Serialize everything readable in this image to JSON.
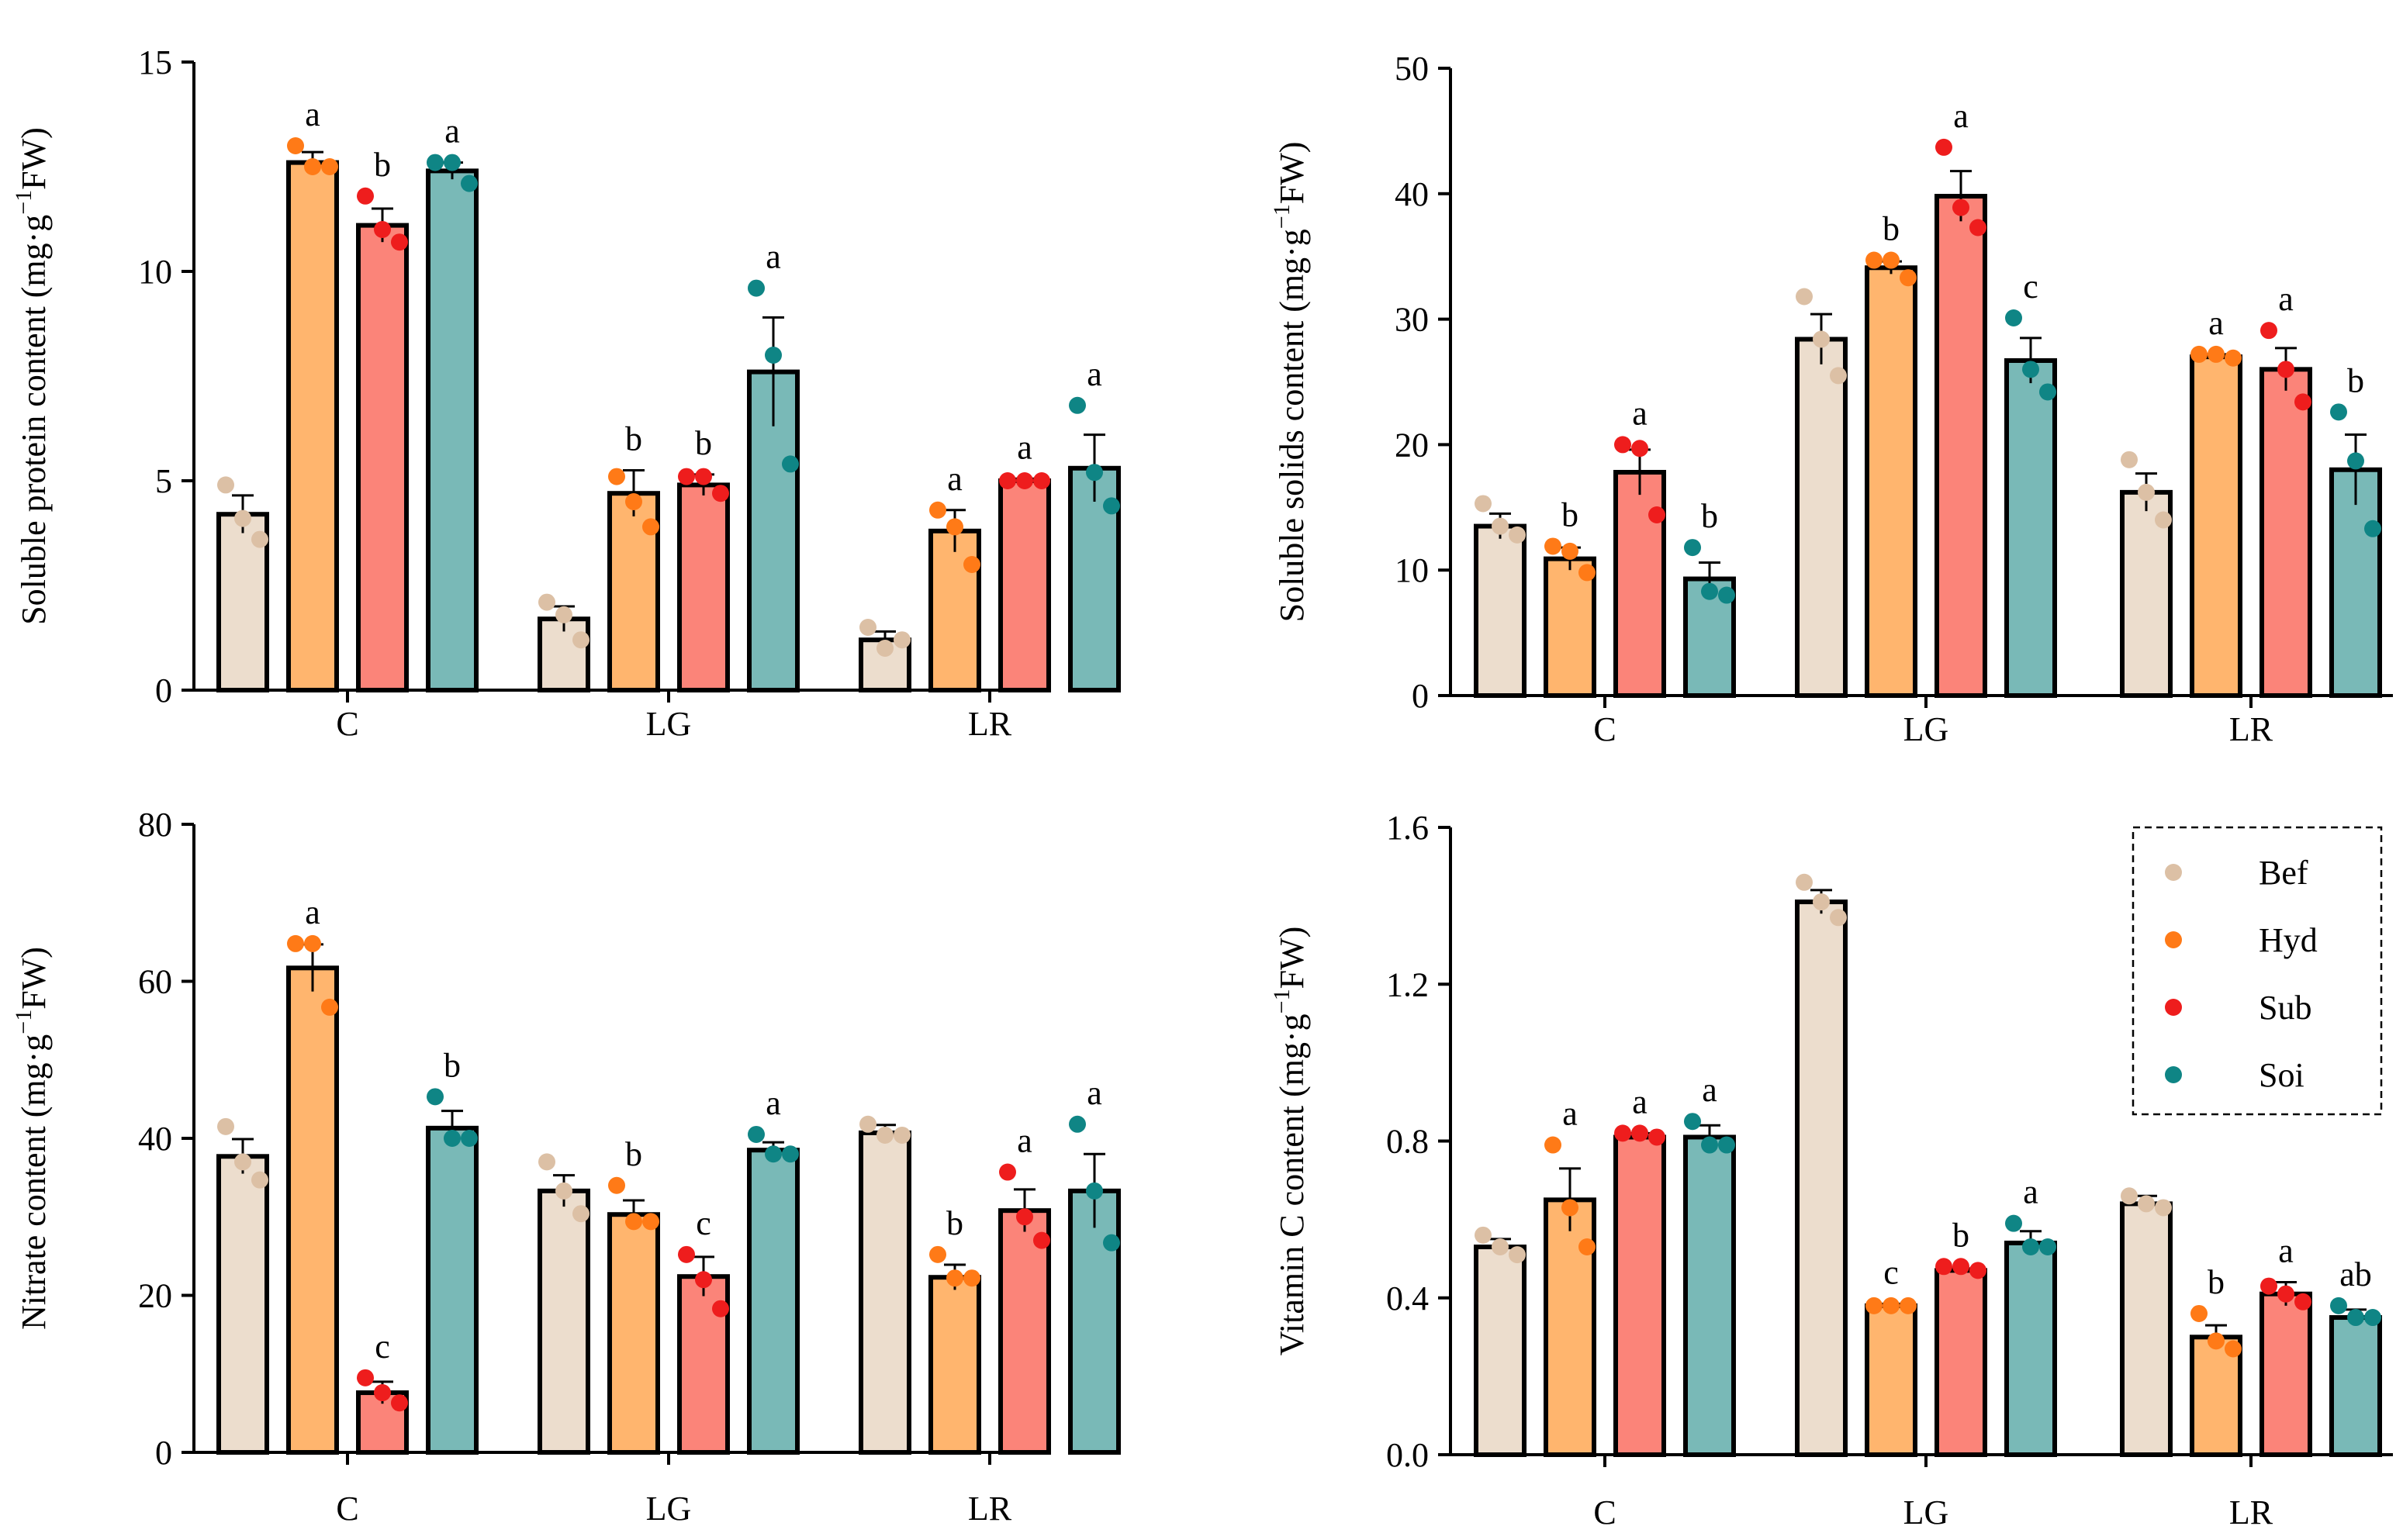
{
  "legend": {
    "entries": [
      {
        "key": "Bef",
        "label": "Bef",
        "dot": "#dcc0a5",
        "fill": "#ecddcd"
      },
      {
        "key": "Hyd",
        "label": "Hyd",
        "dot": "#ff7a17",
        "fill": "#ffb56e"
      },
      {
        "key": "Sub",
        "label": "Sub",
        "dot": "#ee1d1d",
        "fill": "#fb8479"
      },
      {
        "key": "Soi",
        "label": "Soi",
        "dot": "#0f8585",
        "fill": "#79b9b7"
      }
    ]
  },
  "chart_data": [
    {
      "type": "bar",
      "panel": "top-left",
      "ylabel": "Soluble protein content (mg·g",
      "ylabel_sup": "−1",
      "ylabel_end": "FW)",
      "ylim": [
        0,
        15
      ],
      "yticks": [
        "0",
        "5",
        "10",
        "15"
      ],
      "categories": [
        "C",
        "LG",
        "LR"
      ],
      "series": [
        {
          "name": "Bef",
          "values": [
            4.2,
            1.7,
            1.2
          ],
          "errors": [
            0.45,
            0.3,
            0.2
          ],
          "points": [
            [
              4.9,
              4.1,
              3.6
            ],
            [
              2.1,
              1.8,
              1.2
            ],
            [
              1.5,
              1.0,
              1.2
            ]
          ],
          "letters": [
            "",
            "",
            ""
          ]
        },
        {
          "name": "Hyd",
          "values": [
            12.6,
            4.7,
            3.8
          ],
          "errors": [
            0.25,
            0.55,
            0.5
          ],
          "points": [
            [
              13.0,
              12.5,
              12.5
            ],
            [
              5.1,
              4.5,
              3.9
            ],
            [
              4.3,
              3.9,
              3.0
            ]
          ],
          "letters": [
            "a",
            "b",
            "a"
          ]
        },
        {
          "name": "Sub",
          "values": [
            11.1,
            4.9,
            5.0
          ],
          "errors": [
            0.4,
            0.25,
            0.05
          ],
          "points": [
            [
              11.8,
              11.0,
              10.7
            ],
            [
              5.1,
              5.1,
              4.7
            ],
            [
              5.0,
              5.0,
              5.0
            ]
          ],
          "letters": [
            "b",
            "b",
            "a"
          ]
        },
        {
          "name": "Soi",
          "values": [
            12.4,
            7.6,
            5.3
          ],
          "errors": [
            0.2,
            1.3,
            0.8
          ],
          "points": [
            [
              12.6,
              12.6,
              12.1
            ],
            [
              9.6,
              8.0,
              5.4
            ],
            [
              6.8,
              5.2,
              4.4
            ]
          ],
          "letters": [
            "a",
            "a",
            "a"
          ]
        }
      ]
    },
    {
      "type": "bar",
      "panel": "top-right",
      "ylabel": "Soluble solids content  (mg·g",
      "ylabel_sup": "−1",
      "ylabel_end": "FW)",
      "ylim": [
        0,
        50
      ],
      "yticks": [
        "0",
        "10",
        "20",
        "30",
        "40",
        "50"
      ],
      "categories": [
        "C",
        "LG",
        "LR"
      ],
      "series": [
        {
          "name": "Bef",
          "values": [
            13.5,
            28.4,
            16.2
          ],
          "errors": [
            1.0,
            2.0,
            1.5
          ],
          "points": [
            [
              15.3,
              13.5,
              12.8
            ],
            [
              31.8,
              28.4,
              25.5
            ],
            [
              18.8,
              16.2,
              14.0
            ]
          ],
          "letters": [
            "",
            "",
            ""
          ]
        },
        {
          "name": "Hyd",
          "values": [
            10.9,
            34.1,
            27.0
          ],
          "errors": [
            0.9,
            0.5,
            0.2
          ],
          "points": [
            [
              11.9,
              11.5,
              9.8
            ],
            [
              34.7,
              34.7,
              33.3
            ],
            [
              27.2,
              27.2,
              26.9
            ]
          ],
          "letters": [
            "b",
            "b",
            "a"
          ]
        },
        {
          "name": "Sub",
          "values": [
            17.8,
            39.8,
            26.0
          ],
          "errors": [
            1.8,
            2.0,
            1.7
          ],
          "points": [
            [
              20.0,
              19.7,
              14.4
            ],
            [
              43.7,
              38.9,
              37.3
            ],
            [
              29.1,
              26.0,
              23.4
            ]
          ],
          "letters": [
            "a",
            "a",
            "a"
          ]
        },
        {
          "name": "Soi",
          "values": [
            9.3,
            26.7,
            18.0
          ],
          "errors": [
            1.3,
            1.8,
            2.8
          ],
          "points": [
            [
              11.8,
              8.3,
              8.0
            ],
            [
              30.1,
              26.0,
              24.2
            ],
            [
              22.6,
              18.7,
              13.3
            ]
          ],
          "letters": [
            "b",
            "c",
            "b"
          ]
        }
      ]
    },
    {
      "type": "bar",
      "panel": "bottom-left",
      "ylabel": "Nitrate content (mg·g",
      "ylabel_sup": "−1",
      "ylabel_end": "FW)",
      "ylim": [
        0,
        80
      ],
      "yticks": [
        "0",
        "20",
        "40",
        "60",
        "80"
      ],
      "categories": [
        "C",
        "LG",
        "LR"
      ],
      "series": [
        {
          "name": "Bef",
          "values": [
            37.7,
            33.3,
            40.7
          ],
          "errors": [
            2.2,
            2.0,
            1.0
          ],
          "points": [
            [
              41.5,
              37.0,
              34.7
            ],
            [
              37.0,
              33.3,
              30.4
            ],
            [
              41.8,
              40.4,
              40.4
            ]
          ],
          "letters": [
            "",
            "",
            ""
          ]
        },
        {
          "name": "Hyd",
          "values": [
            61.7,
            30.3,
            22.3
          ],
          "errors": [
            3.0,
            1.8,
            1.6
          ],
          "points": [
            [
              64.8,
              64.8,
              56.7
            ],
            [
              34.0,
              29.4,
              29.4
            ],
            [
              25.2,
              22.2,
              22.2
            ]
          ],
          "letters": [
            "a",
            "b",
            "b"
          ]
        },
        {
          "name": "Sub",
          "values": [
            7.6,
            22.4,
            30.8
          ],
          "errors": [
            1.4,
            2.5,
            2.7
          ],
          "points": [
            [
              9.5,
              7.6,
              6.3
            ],
            [
              25.2,
              22.0,
              18.3
            ],
            [
              35.7,
              30.0,
              27.0
            ]
          ],
          "letters": [
            "c",
            "c",
            "a"
          ]
        },
        {
          "name": "Soi",
          "values": [
            41.3,
            38.5,
            33.3
          ],
          "errors": [
            2.2,
            1.0,
            4.7
          ],
          "points": [
            [
              45.3,
              40.0,
              40.0
            ],
            [
              40.5,
              38.0,
              38.0
            ],
            [
              41.8,
              33.3,
              26.7
            ]
          ],
          "letters": [
            "b",
            "a",
            "a"
          ]
        }
      ]
    },
    {
      "type": "bar",
      "panel": "bottom-right",
      "ylabel": "Vitamin C content (mg·g",
      "ylabel_sup": "−1",
      "ylabel_end": "FW)",
      "ylim": [
        0,
        1.6
      ],
      "yticks": [
        "0.0",
        "0.4",
        "0.8",
        "1.2",
        "1.6"
      ],
      "categories": [
        "C",
        "LG",
        "LR"
      ],
      "series": [
        {
          "name": "Bef",
          "values": [
            0.53,
            1.41,
            0.64
          ],
          "errors": [
            0.02,
            0.03,
            0.02
          ],
          "points": [
            [
              0.56,
              0.53,
              0.51
            ],
            [
              1.46,
              1.41,
              1.37
            ],
            [
              0.66,
              0.64,
              0.63
            ]
          ],
          "letters": [
            "",
            "",
            ""
          ]
        },
        {
          "name": "Hyd",
          "values": [
            0.65,
            0.38,
            0.3
          ],
          "errors": [
            0.08,
            0.005,
            0.03
          ],
          "points": [
            [
              0.79,
              0.63,
              0.53
            ],
            [
              0.38,
              0.38,
              0.38
            ],
            [
              0.36,
              0.29,
              0.27
            ]
          ],
          "letters": [
            "a",
            "c",
            "b"
          ]
        },
        {
          "name": "Sub",
          "values": [
            0.81,
            0.47,
            0.41
          ],
          "errors": [
            0.01,
            0.005,
            0.03
          ],
          "points": [
            [
              0.82,
              0.82,
              0.81
            ],
            [
              0.48,
              0.48,
              0.47
            ],
            [
              0.43,
              0.41,
              0.39
            ]
          ],
          "letters": [
            "a",
            "b",
            "a"
          ]
        },
        {
          "name": "Soi",
          "values": [
            0.81,
            0.54,
            0.35
          ],
          "errors": [
            0.03,
            0.03,
            0.02
          ],
          "points": [
            [
              0.85,
              0.79,
              0.79
            ],
            [
              0.59,
              0.53,
              0.53
            ],
            [
              0.38,
              0.35,
              0.35
            ]
          ],
          "letters": [
            "a",
            "a",
            "ab"
          ]
        }
      ]
    }
  ]
}
